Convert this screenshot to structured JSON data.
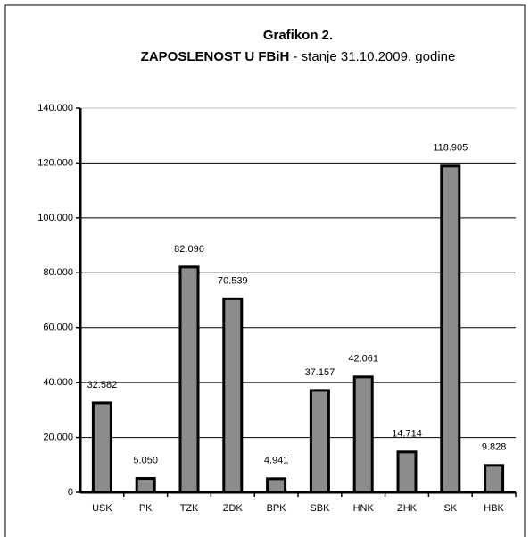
{
  "chart_data": {
    "type": "bar",
    "title": "Grafikon 2.",
    "subtitle": [
      "ZAPOSLENOST U FBiH",
      "- stanje 31.10.2009. godine"
    ],
    "categories": [
      "USK",
      "PK",
      "TZK",
      "ZDK",
      "BPK",
      "SBK",
      "HNK",
      "ZHK",
      "SK",
      "HBK"
    ],
    "values": [
      32582,
      5050,
      82096,
      70539,
      4941,
      37157,
      42061,
      14714,
      118905,
      9828
    ],
    "value_labels": [
      "32.582",
      "5.050",
      "82.096",
      "70.539",
      "4.941",
      "37.157",
      "42.061",
      "14.714",
      "118.905",
      "9.828"
    ],
    "color": "#8c8c8c",
    "ylim": [
      0,
      140000
    ],
    "yticks": [
      0,
      {
        "value": 20000,
        "label": "20.000"
      },
      {
        "value": 40000,
        "label": "40.000"
      },
      {
        "value": 60000,
        "label": "60.000"
      },
      {
        "value": 80000,
        "label": "80.000"
      },
      {
        "value": 100000,
        "label": "100.000"
      },
      {
        "value": 120000,
        "label": "120.000"
      },
      {
        "value": 140000,
        "label": "140.000"
      }
    ],
    "grid": true
  }
}
